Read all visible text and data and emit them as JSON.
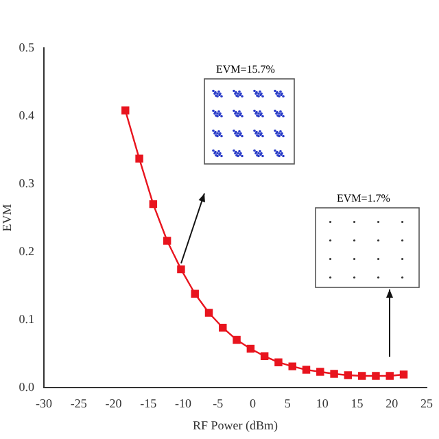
{
  "chart_data": {
    "type": "line",
    "xlabel": "RF Power (dBm)",
    "ylabel": "EVM",
    "x": [
      -18.3,
      -16.3,
      -14.3,
      -12.3,
      -10.3,
      -8.3,
      -6.3,
      -4.3,
      -2.3,
      -0.3,
      1.7,
      3.7,
      5.7,
      7.7,
      9.7,
      11.7,
      13.7,
      15.7,
      17.7,
      19.7,
      21.7
    ],
    "series": [
      {
        "color": "#e8141e",
        "values": [
          0.408,
          0.337,
          0.27,
          0.216,
          0.174,
          0.138,
          0.11,
          0.088,
          0.07,
          0.057,
          0.046,
          0.037,
          0.031,
          0.026,
          0.023,
          0.02,
          0.018,
          0.017,
          0.017,
          0.017,
          0.019
        ]
      }
    ],
    "xlim": [
      -30,
      25
    ],
    "xticks": [
      -30,
      -25,
      -20,
      -15,
      -10,
      -5,
      0,
      5,
      10,
      15,
      20,
      25
    ],
    "ylim": [
      0,
      0.5
    ],
    "yticks": [
      {
        "value": 0,
        "label": "0.0"
      },
      {
        "value": 0.1,
        "label": "0.1"
      },
      {
        "value": 0.2,
        "label": "0.2"
      },
      {
        "value": 0.3,
        "label": "0.3"
      },
      {
        "value": 0.4,
        "label": "0.4"
      },
      {
        "value": 0.5,
        "label": "0.5"
      }
    ],
    "annotations": [
      "EVM=15.7%",
      "EVM=1.7%"
    ],
    "marker": "square",
    "line_style": "solid",
    "grid": false,
    "legend": false
  }
}
